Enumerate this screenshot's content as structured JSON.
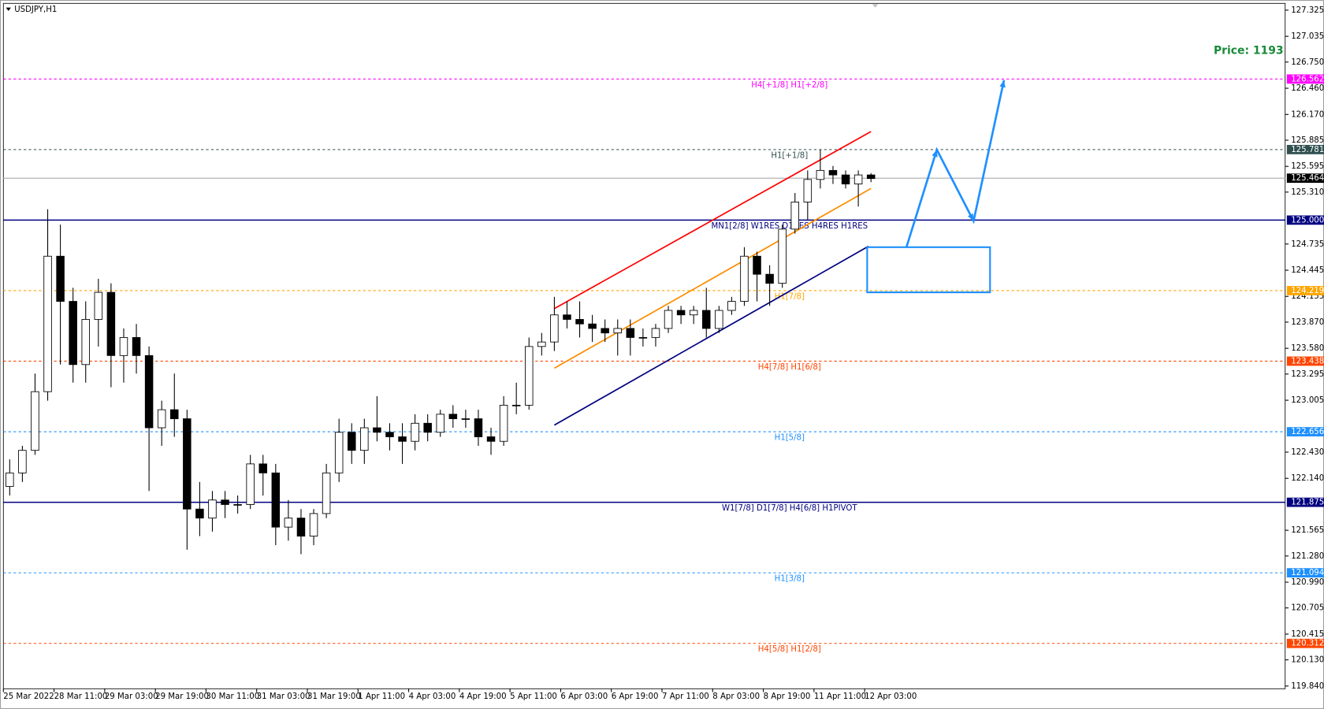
{
  "chart_data": {
    "type": "candlestick",
    "title": "USDJPY,H1",
    "annotation": "Price: 1193",
    "ylim": [
      119.81,
      127.4
    ],
    "yticks": [
      127.325,
      127.035,
      {
        "value": 126.75,
        "label": "126.750"
      },
      {
        "value": 126.46,
        "label": "126.460"
      },
      {
        "value": 126.17,
        "label": "126.170"
      },
      125.885,
      125.595,
      {
        "value": 125.31,
        "label": "125.310"
      },
      124.735,
      124.445,
      124.155,
      {
        "value": 123.87,
        "label": "123.870"
      },
      {
        "value": 123.58,
        "label": "123.580"
      },
      123.295,
      123.005,
      {
        "value": 122.43,
        "label": "122.430"
      },
      {
        "value": 122.14,
        "label": "122.140"
      },
      121.565,
      {
        "value": 121.28,
        "label": "121.280"
      },
      {
        "value": 120.99,
        "label": "120.990"
      },
      120.705,
      120.415,
      {
        "value": 120.13,
        "label": "120.130"
      },
      {
        "value": 119.84,
        "label": "119.840"
      }
    ],
    "categories": [
      "25 Mar 2022",
      null,
      null,
      null,
      "28 Mar 11:00",
      null,
      null,
      null,
      "29 Mar 03:00",
      null,
      null,
      null,
      "29 Mar 19:00",
      null,
      null,
      null,
      "30 Mar 11:00",
      null,
      null,
      null,
      "31 Mar 03:00",
      null,
      null,
      null,
      "31 Mar 19:00",
      null,
      null,
      null,
      "1 Apr 11:00",
      null,
      null,
      null,
      "4 Apr 03:00",
      null,
      null,
      null,
      "4 Apr 19:00",
      null,
      null,
      null,
      "5 Apr 11:00",
      null,
      null,
      null,
      "6 Apr 03:00",
      null,
      null,
      null,
      "6 Apr 19:00",
      null,
      null,
      null,
      "7 Apr 11:00",
      null,
      null,
      null,
      "8 Apr 03:00",
      null,
      null,
      null,
      "8 Apr 19:00",
      null,
      null,
      null,
      "11 Apr 11:00",
      null,
      null,
      null,
      "12 Apr 03:00"
    ],
    "open": [
      122.05,
      122.2,
      122.45,
      123.1,
      124.6,
      124.1,
      123.4,
      123.9,
      124.2,
      123.5,
      123.7,
      123.5,
      122.7,
      122.9,
      122.8,
      121.8,
      121.7,
      121.9,
      121.85,
      121.85,
      122.3,
      122.2,
      121.6,
      121.7,
      121.5,
      121.75,
      122.2,
      122.65,
      122.45,
      122.7,
      122.65,
      122.6,
      122.55,
      122.75,
      122.65,
      122.85,
      122.8,
      122.8,
      122.6,
      122.55,
      122.95,
      122.95,
      123.6,
      123.65,
      123.95,
      123.9,
      123.85,
      123.8,
      123.75,
      123.8,
      123.7,
      123.7,
      123.8,
      124.0,
      123.95,
      124.0,
      123.8,
      124.0,
      124.1,
      124.6,
      124.4,
      124.3,
      124.9,
      125.2,
      125.45,
      125.55,
      125.5,
      125.4,
      125.5
    ],
    "high": [
      122.35,
      122.5,
      123.3,
      125.12,
      124.95,
      124.25,
      124.1,
      124.35,
      124.3,
      123.8,
      123.85,
      123.6,
      123.0,
      123.3,
      122.9,
      122.1,
      122.0,
      122.0,
      121.95,
      122.4,
      122.4,
      122.3,
      121.9,
      121.8,
      121.8,
      122.3,
      122.8,
      122.75,
      122.8,
      123.05,
      122.75,
      122.75,
      122.85,
      122.85,
      122.9,
      122.95,
      122.9,
      122.9,
      122.7,
      123.05,
      123.2,
      123.7,
      123.75,
      124.15,
      124.1,
      124.1,
      123.95,
      123.9,
      123.9,
      123.9,
      123.8,
      123.85,
      124.05,
      124.05,
      124.05,
      124.25,
      124.05,
      124.15,
      124.7,
      124.65,
      124.5,
      124.95,
      125.3,
      125.55,
      125.78,
      125.6,
      125.55,
      125.55,
      125.52
    ],
    "low": [
      121.95,
      122.1,
      122.4,
      123.0,
      123.4,
      123.2,
      123.2,
      123.6,
      123.15,
      123.2,
      123.3,
      122.0,
      122.5,
      122.6,
      121.35,
      121.5,
      121.55,
      121.7,
      121.75,
      121.8,
      121.95,
      121.4,
      121.45,
      121.3,
      121.4,
      121.7,
      122.1,
      122.3,
      122.3,
      122.55,
      122.45,
      122.3,
      122.45,
      122.55,
      122.6,
      122.7,
      122.7,
      122.5,
      122.4,
      122.5,
      122.85,
      122.9,
      123.5,
      123.55,
      123.8,
      123.7,
      123.65,
      123.65,
      123.5,
      123.5,
      123.6,
      123.6,
      123.75,
      123.85,
      123.85,
      123.7,
      123.75,
      123.95,
      124.05,
      124.1,
      124.05,
      124.25,
      124.85,
      125.0,
      125.35,
      125.4,
      125.35,
      125.15,
      125.42
    ],
    "close": [
      122.2,
      122.45,
      123.1,
      124.6,
      124.1,
      123.4,
      123.9,
      124.2,
      123.5,
      123.7,
      123.5,
      122.7,
      122.9,
      122.8,
      121.8,
      121.7,
      121.9,
      121.85,
      121.85,
      122.3,
      122.2,
      121.6,
      121.7,
      121.5,
      121.75,
      122.2,
      122.65,
      122.45,
      122.7,
      122.65,
      122.6,
      122.55,
      122.75,
      122.65,
      122.85,
      122.8,
      122.8,
      122.6,
      122.55,
      122.95,
      122.95,
      123.6,
      123.65,
      123.95,
      123.9,
      123.85,
      123.8,
      123.75,
      123.8,
      123.7,
      123.7,
      123.8,
      124.0,
      123.95,
      124.0,
      123.8,
      124.0,
      124.1,
      124.6,
      124.4,
      124.3,
      124.9,
      125.2,
      125.45,
      125.55,
      125.5,
      125.4,
      125.5,
      125.46
    ],
    "levels": [
      {
        "price": 126.562,
        "text": "H4[+1/8] H1[+2/8]",
        "color": "#ff00ff",
        "dashed": true
      },
      {
        "price": 125.781,
        "text": "H1[+1/8]",
        "color": "#2f4f4f",
        "dashed": true
      },
      {
        "price": 125.464,
        "color": "#000000",
        "line_color": "#c0c0c0",
        "dashed": false
      },
      {
        "price": 125,
        "price_label": "125.000",
        "text": "MN1[2/8] W1RES D1RES H4RES H1RES",
        "color": "#000080",
        "dashed": false
      },
      {
        "price": 124.219,
        "text": "H1[7/8]",
        "color": "#ffa500",
        "dashed": true
      },
      {
        "price": 123.438,
        "text": "H4[7/8] H1[6/8]",
        "color": "#ff4500",
        "dashed": true
      },
      {
        "price": 122.656,
        "text": "H1[5/8]",
        "color": "#1e90ff",
        "dashed": true
      },
      {
        "price": 121.875,
        "text": "W1[7/8] D1[7/8] H4[6/8] H1PIVOT",
        "color": "#000080",
        "dashed": false
      },
      {
        "price": 121.094,
        "text": "H1[3/8]",
        "color": "#1e90ff",
        "dashed": true
      },
      {
        "price": 120.312,
        "text": "H4[5/8] H1[2/8]",
        "color": "#ff4500",
        "dashed": true
      }
    ],
    "trendlines": [
      {
        "color": "#ff0000",
        "x": [
          43.5,
          68.5
        ],
        "y": [
          124.02,
          125.98
        ]
      },
      {
        "color": "#ff8c00",
        "x": [
          43.5,
          68.5
        ],
        "y": [
          123.36,
          125.35
        ]
      },
      {
        "color": "#000080",
        "x": [
          43.5,
          68.3
        ],
        "y": [
          122.73,
          124.71
        ]
      }
    ],
    "zone": {
      "color": "#1e90ff",
      "x": [
        68.2,
        77.9
      ],
      "y": [
        124.7,
        124.2
      ]
    },
    "projection": {
      "color": "#1e90ff",
      "x": [
        71.3,
        73.7,
        76.6,
        79.0
      ],
      "y": [
        124.7,
        125.78,
        124.99,
        126.55
      ]
    }
  }
}
